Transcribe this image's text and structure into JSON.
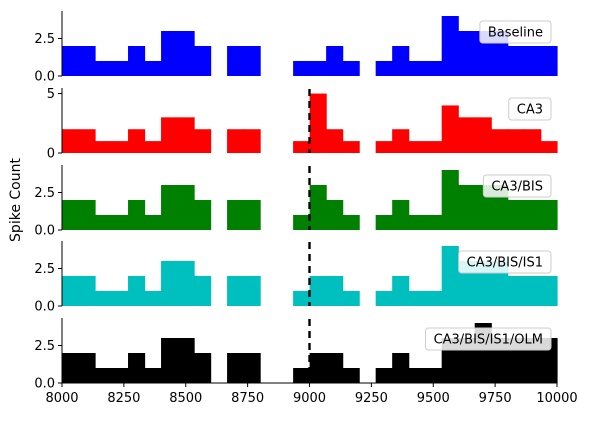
{
  "chart_data": {
    "type": "bar",
    "ylabel": "Spike Count",
    "xlim": [
      8000,
      10000
    ],
    "bin_width": 66.7,
    "x_ticks": [
      8000,
      8250,
      8500,
      8750,
      9000,
      9250,
      9500,
      9750,
      10000
    ],
    "x_tick_labels": [
      "8000",
      "8250",
      "8500",
      "8750",
      "9000",
      "9250",
      "9500",
      "9750",
      "10000"
    ],
    "marker_line_x": 9000,
    "legend_placement": "upper right",
    "panels": [
      {
        "name": "Baseline",
        "color": "#0000ff",
        "ylim": [
          0,
          4.2
        ],
        "y_ticks": [
          0,
          2.5
        ],
        "y_tick_labels": [
          "0.0",
          "2.5"
        ],
        "show_marker_line": false,
        "values": [
          2,
          2,
          1,
          1,
          2,
          1,
          3,
          3,
          2,
          0,
          2,
          2,
          0,
          0,
          1,
          1,
          2,
          1,
          0,
          1,
          2,
          1,
          1,
          4,
          3,
          3,
          3,
          2,
          2,
          2
        ]
      },
      {
        "name": "CA3",
        "color": "#ff0000",
        "ylim": [
          0,
          5.3
        ],
        "y_ticks": [
          0,
          5
        ],
        "y_tick_labels": [
          "0",
          "5"
        ],
        "show_marker_line": true,
        "values": [
          2,
          2,
          1,
          1,
          2,
          1,
          3,
          3,
          2,
          0,
          2,
          2,
          0,
          0,
          1,
          5,
          2,
          1,
          0,
          1,
          2,
          1,
          1,
          4,
          3,
          3,
          2,
          2,
          2,
          1
        ]
      },
      {
        "name": "CA3/BIS",
        "color": "#008000",
        "ylim": [
          0,
          4.2
        ],
        "y_ticks": [
          0,
          2.5
        ],
        "y_tick_labels": [
          "0.0",
          "2.5"
        ],
        "show_marker_line": true,
        "values": [
          2,
          2,
          1,
          1,
          2,
          1,
          3,
          3,
          2,
          0,
          2,
          2,
          0,
          0,
          1,
          3,
          2,
          1,
          0,
          1,
          2,
          1,
          1,
          4,
          3,
          3,
          3,
          2,
          2,
          2
        ]
      },
      {
        "name": "CA3/BIS/IS1",
        "color": "#00bfbf",
        "ylim": [
          0,
          4.2
        ],
        "y_ticks": [
          0,
          2.5
        ],
        "y_tick_labels": [
          "0.0",
          "2.5"
        ],
        "show_marker_line": true,
        "values": [
          2,
          2,
          1,
          1,
          2,
          1,
          3,
          3,
          2,
          0,
          2,
          2,
          0,
          0,
          1,
          2,
          2,
          1,
          0,
          1,
          2,
          1,
          1,
          4,
          3,
          3,
          3,
          2,
          2,
          2
        ]
      },
      {
        "name": "CA3/BIS/IS1/OLM",
        "color": "#000000",
        "ylim": [
          0,
          4.2
        ],
        "y_ticks": [
          0,
          2.5
        ],
        "y_tick_labels": [
          "0.0",
          "2.5"
        ],
        "show_marker_line": true,
        "values": [
          2,
          2,
          1,
          1,
          2,
          1,
          3,
          3,
          2,
          0,
          2,
          2,
          0,
          0,
          1,
          2,
          2,
          1,
          0,
          1,
          2,
          1,
          1,
          3,
          3,
          4,
          3,
          3,
          3,
          3
        ]
      }
    ]
  }
}
